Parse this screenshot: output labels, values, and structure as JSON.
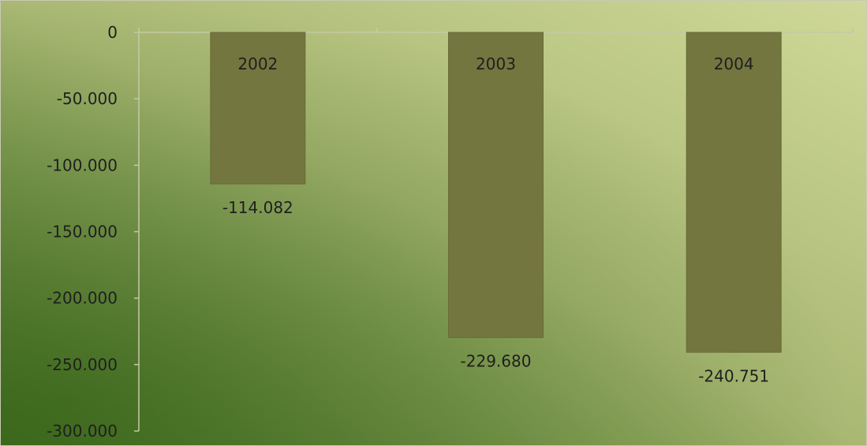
{
  "chart_data": {
    "type": "bar",
    "categories": [
      "2002",
      "2003",
      "2004"
    ],
    "values": [
      -114082,
      -229680,
      -240751
    ],
    "value_labels": [
      "-114.082",
      "-229.680",
      "-240.751"
    ],
    "ylim": [
      -300000,
      0
    ],
    "y_ticks": [
      0,
      -50000,
      -100000,
      -150000,
      -200000,
      -250000,
      -300000
    ],
    "y_tick_labels": [
      "0",
      "-50.000",
      "-100.000",
      "-150.000",
      "-200.000",
      "-250.000",
      "-300.000"
    ],
    "title": "",
    "xlabel": "",
    "ylabel": "",
    "grid": false,
    "legend": "none",
    "colors": {
      "bar": "#73763f",
      "bar_edge": "#6a6c38",
      "background_light": "#cfd898",
      "background_dark": "#46721f",
      "axis_line": "#c5c9a3",
      "text": "#1f1f1f"
    }
  }
}
